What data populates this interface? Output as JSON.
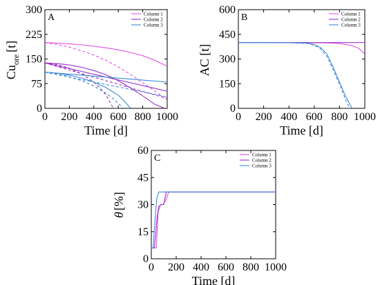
{
  "colors": {
    "column1": "#e64ce6",
    "column2": "#9b30c8",
    "column3": "#3c8ad8"
  },
  "chart_data": [
    {
      "type": "line",
      "panel": "A",
      "title": "",
      "xlabel": "Time [d]",
      "ylabel_main": "Cu",
      "ylabel_sub": "ore",
      "ylabel_unit": "[t]",
      "xlim": [
        0,
        1000
      ],
      "ylim": [
        0,
        300
      ],
      "xticks": [
        0,
        200,
        400,
        600,
        800,
        1000
      ],
      "yticks": [
        0,
        75,
        150,
        225,
        300
      ],
      "xtick_labels": [
        "0",
        "200",
        "400",
        "600",
        "800",
        "1000"
      ],
      "ytick_labels": [
        "0",
        "75",
        "150",
        "225",
        "300"
      ],
      "legend": [
        "Column 1",
        "Column 2",
        "Column 3"
      ],
      "legend_position": "top-right",
      "series": [
        {
          "name": "Column 1",
          "style": "solid",
          "x": [
            0,
            100,
            200,
            300,
            400,
            500,
            600,
            700,
            800,
            900,
            1000
          ],
          "values": [
            200,
            198,
            196,
            193,
            189,
            184,
            178,
            170,
            160,
            146,
            128
          ]
        },
        {
          "name": "Column 1",
          "style": "dashed",
          "x": [
            0,
            100,
            200,
            300,
            400,
            500,
            600,
            700,
            800,
            900,
            1000
          ],
          "values": [
            200,
            194,
            186,
            175,
            162,
            146,
            126,
            103,
            78,
            52,
            25
          ]
        },
        {
          "name": "Column 2",
          "style": "solid",
          "x": [
            0,
            100,
            200,
            300,
            400,
            500,
            600,
            700,
            800,
            900,
            980
          ],
          "values": [
            138,
            136,
            132,
            125,
            115,
            102,
            84,
            62,
            38,
            12,
            0
          ]
        },
        {
          "name": "Column 2",
          "style": "dashed",
          "x": [
            0,
            100,
            200,
            300,
            400,
            450,
            500,
            530,
            560
          ],
          "values": [
            138,
            133,
            122,
            105,
            80,
            62,
            40,
            20,
            0
          ]
        },
        {
          "name": "Column 3",
          "style": "solid",
          "x": [
            0,
            100,
            200,
            300,
            400,
            500,
            600,
            650,
            700
          ],
          "values": [
            110,
            107,
            101,
            92,
            80,
            63,
            40,
            22,
            0
          ]
        },
        {
          "name": "Column 3",
          "style": "dashed",
          "x": [
            0,
            100,
            200,
            300,
            400,
            500,
            550,
            600,
            640
          ],
          "values": [
            110,
            105,
            96,
            84,
            68,
            46,
            32,
            15,
            0
          ]
        },
        {
          "name": "Column 2",
          "style": "solid-linear",
          "x": [
            0,
            1000
          ],
          "values": [
            138,
            52
          ]
        },
        {
          "name": "Column 2",
          "style": "dashed-linear",
          "x": [
            0,
            1000
          ],
          "values": [
            138,
            30
          ]
        },
        {
          "name": "Column 3",
          "style": "solid-linear",
          "x": [
            0,
            1000
          ],
          "values": [
            110,
            80
          ]
        },
        {
          "name": "Column 3",
          "style": "dashed-linear",
          "x": [
            0,
            1000
          ],
          "values": [
            110,
            35
          ]
        }
      ]
    },
    {
      "type": "line",
      "panel": "B",
      "title": "",
      "xlabel": "Time [d]",
      "ylabel": "AC [t]",
      "xlim": [
        0,
        1000
      ],
      "ylim": [
        0,
        600
      ],
      "xticks": [
        0,
        200,
        400,
        600,
        800,
        1000
      ],
      "yticks": [
        0,
        150,
        300,
        450,
        600
      ],
      "xtick_labels": [
        "0",
        "200",
        "400",
        "600",
        "800",
        "1000"
      ],
      "ytick_labels": [
        "0",
        "150",
        "300",
        "450",
        "600"
      ],
      "legend": [
        "Column 1",
        "Column 2",
        "Column 3"
      ],
      "legend_position": "top-right",
      "series": [
        {
          "name": "Column 1",
          "style": "solid",
          "x": [
            0,
            200,
            400,
            600,
            700,
            800,
            900,
            950,
            1000
          ],
          "values": [
            400,
            400,
            400,
            399,
            398,
            394,
            382,
            366,
            330
          ]
        },
        {
          "name": "Column 2",
          "style": "solid",
          "x": [
            0,
            200,
            400,
            600,
            800,
            1000
          ],
          "values": [
            400,
            400,
            400,
            400,
            400,
            400
          ]
        },
        {
          "name": "Column 3",
          "style": "solid",
          "x": [
            0,
            200,
            400,
            550,
            600,
            650,
            700,
            750,
            800,
            850,
            900
          ],
          "values": [
            400,
            400,
            399,
            396,
            388,
            370,
            330,
            250,
            160,
            70,
            0
          ]
        },
        {
          "name": "Column 3",
          "style": "dashed",
          "x": [
            0,
            200,
            400,
            550,
            600,
            650,
            700,
            750,
            800,
            850,
            880
          ],
          "values": [
            400,
            400,
            399,
            394,
            384,
            362,
            315,
            235,
            145,
            50,
            0
          ]
        }
      ]
    },
    {
      "type": "line",
      "panel": "C",
      "title": "",
      "xlabel": "Time [d]",
      "ylabel_symbol": "θ",
      "ylabel_unit": "[%]",
      "xlim": [
        0,
        1000
      ],
      "ylim": [
        0,
        60
      ],
      "xticks": [
        0,
        200,
        400,
        600,
        800,
        1000
      ],
      "yticks": [
        0,
        15,
        30,
        45,
        60
      ],
      "xtick_labels": [
        "0",
        "200",
        "400",
        "600",
        "800",
        "1000"
      ],
      "ytick_labels": [
        "0",
        "15",
        "30",
        "45",
        "60"
      ],
      "legend": [
        "Column 1",
        "Column 2",
        "Column 3"
      ],
      "legend_position": "top-right",
      "series": [
        {
          "name": "Column 1",
          "style": "solid",
          "x": [
            0,
            40,
            55,
            75,
            95,
            120,
            140,
            200,
            1000
          ],
          "values": [
            6,
            6,
            26,
            30,
            30,
            33,
            37,
            37,
            37
          ]
        },
        {
          "name": "Column 2",
          "style": "solid",
          "x": [
            0,
            25,
            45,
            60,
            80,
            100,
            120,
            200,
            1000
          ],
          "values": [
            6,
            6,
            22,
            29,
            30,
            30,
            37,
            37,
            37
          ]
        },
        {
          "name": "Column 3",
          "style": "solid",
          "x": [
            0,
            15,
            30,
            45,
            60,
            200,
            1000
          ],
          "values": [
            6,
            6,
            22,
            34,
            37,
            37,
            37
          ]
        }
      ]
    }
  ]
}
